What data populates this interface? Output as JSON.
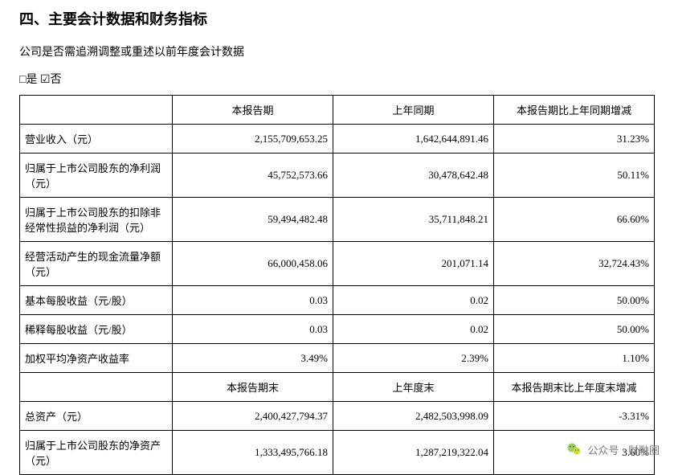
{
  "title": "四、主要会计数据和财务指标",
  "subtext": "公司是否需追溯调整或重述以前年度会计数据",
  "checkbox_line": "□是 ☑否",
  "table1": {
    "header": [
      "",
      "本报告期",
      "上年同期",
      "本报告期比上年同期增减"
    ],
    "rows": [
      {
        "label": "营业收入（元）",
        "c1": "2,155,709,653.25",
        "c2": "1,642,644,891.46",
        "c3": "31.23%"
      },
      {
        "label": "归属于上市公司股东的净利润（元）",
        "c1": "45,752,573.66",
        "c2": "30,478,642.48",
        "c3": "50.11%"
      },
      {
        "label": "归属于上市公司股东的扣除非经常性损益的净利润（元）",
        "c1": "59,494,482.48",
        "c2": "35,711,848.21",
        "c3": "66.60%"
      },
      {
        "label": "经营活动产生的现金流量净额（元）",
        "c1": "66,000,458.06",
        "c2": "201,071.14",
        "c3": "32,724.43%"
      },
      {
        "label": "基本每股收益（元/股）",
        "c1": "0.03",
        "c2": "0.02",
        "c3": "50.00%"
      },
      {
        "label": "稀释每股收益（元/股）",
        "c1": "0.03",
        "c2": "0.02",
        "c3": "50.00%"
      },
      {
        "label": "加权平均净资产收益率",
        "c1": "3.49%",
        "c2": "2.39%",
        "c3": "1.10%"
      }
    ]
  },
  "table2": {
    "header": [
      "",
      "本报告期末",
      "上年度末",
      "本报告期末比上年度末增减"
    ],
    "rows": [
      {
        "label": "总资产（元）",
        "c1": "2,400,427,794.37",
        "c2": "2,482,503,998.09",
        "c3": "-3.31%"
      },
      {
        "label": "归属于上市公司股东的净资产（元）",
        "c1": "1,333,495,766.18",
        "c2": "1,287,219,322.04",
        "c3": "3.60%"
      }
    ]
  },
  "brand": "公众号 · 财融圈"
}
